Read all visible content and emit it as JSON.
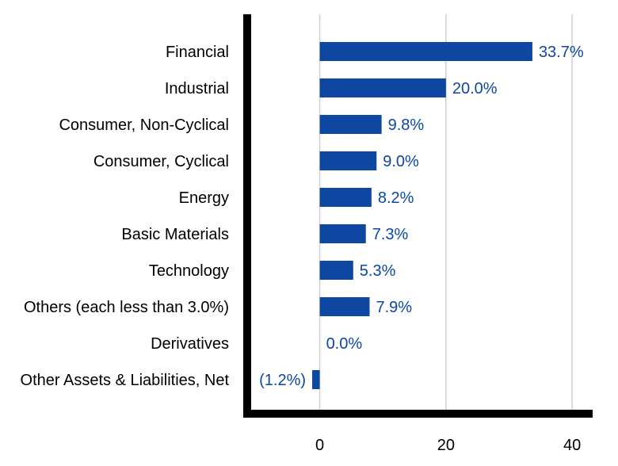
{
  "chart_data": {
    "type": "bar",
    "orientation": "horizontal",
    "categories": [
      "Financial",
      "Industrial",
      "Consumer, Non-Cyclical",
      "Consumer, Cyclical",
      "Energy",
      "Basic Materials",
      "Technology",
      "Others (each less than 3.0%)",
      "Derivatives",
      "Other Assets & Liabilities, Net"
    ],
    "values": [
      33.7,
      20.0,
      9.8,
      9.0,
      8.2,
      7.3,
      5.3,
      7.9,
      0.0,
      -1.2
    ],
    "data_labels": [
      "33.7%",
      "20.0%",
      "9.8%",
      "9.0%",
      "8.2%",
      "7.3%",
      "5.3%",
      "7.9%",
      "0.0%",
      "(1.2%)"
    ],
    "xlim": [
      -11.5,
      43
    ],
    "xticks": [
      "0",
      "20",
      "40"
    ],
    "xtick_values": [
      0,
      20,
      40
    ],
    "grid": true,
    "bar_color": "#0d47a1",
    "label_color": "#0d47a1",
    "grid_color": "#d0d0d0",
    "axis_color": "#000000"
  }
}
